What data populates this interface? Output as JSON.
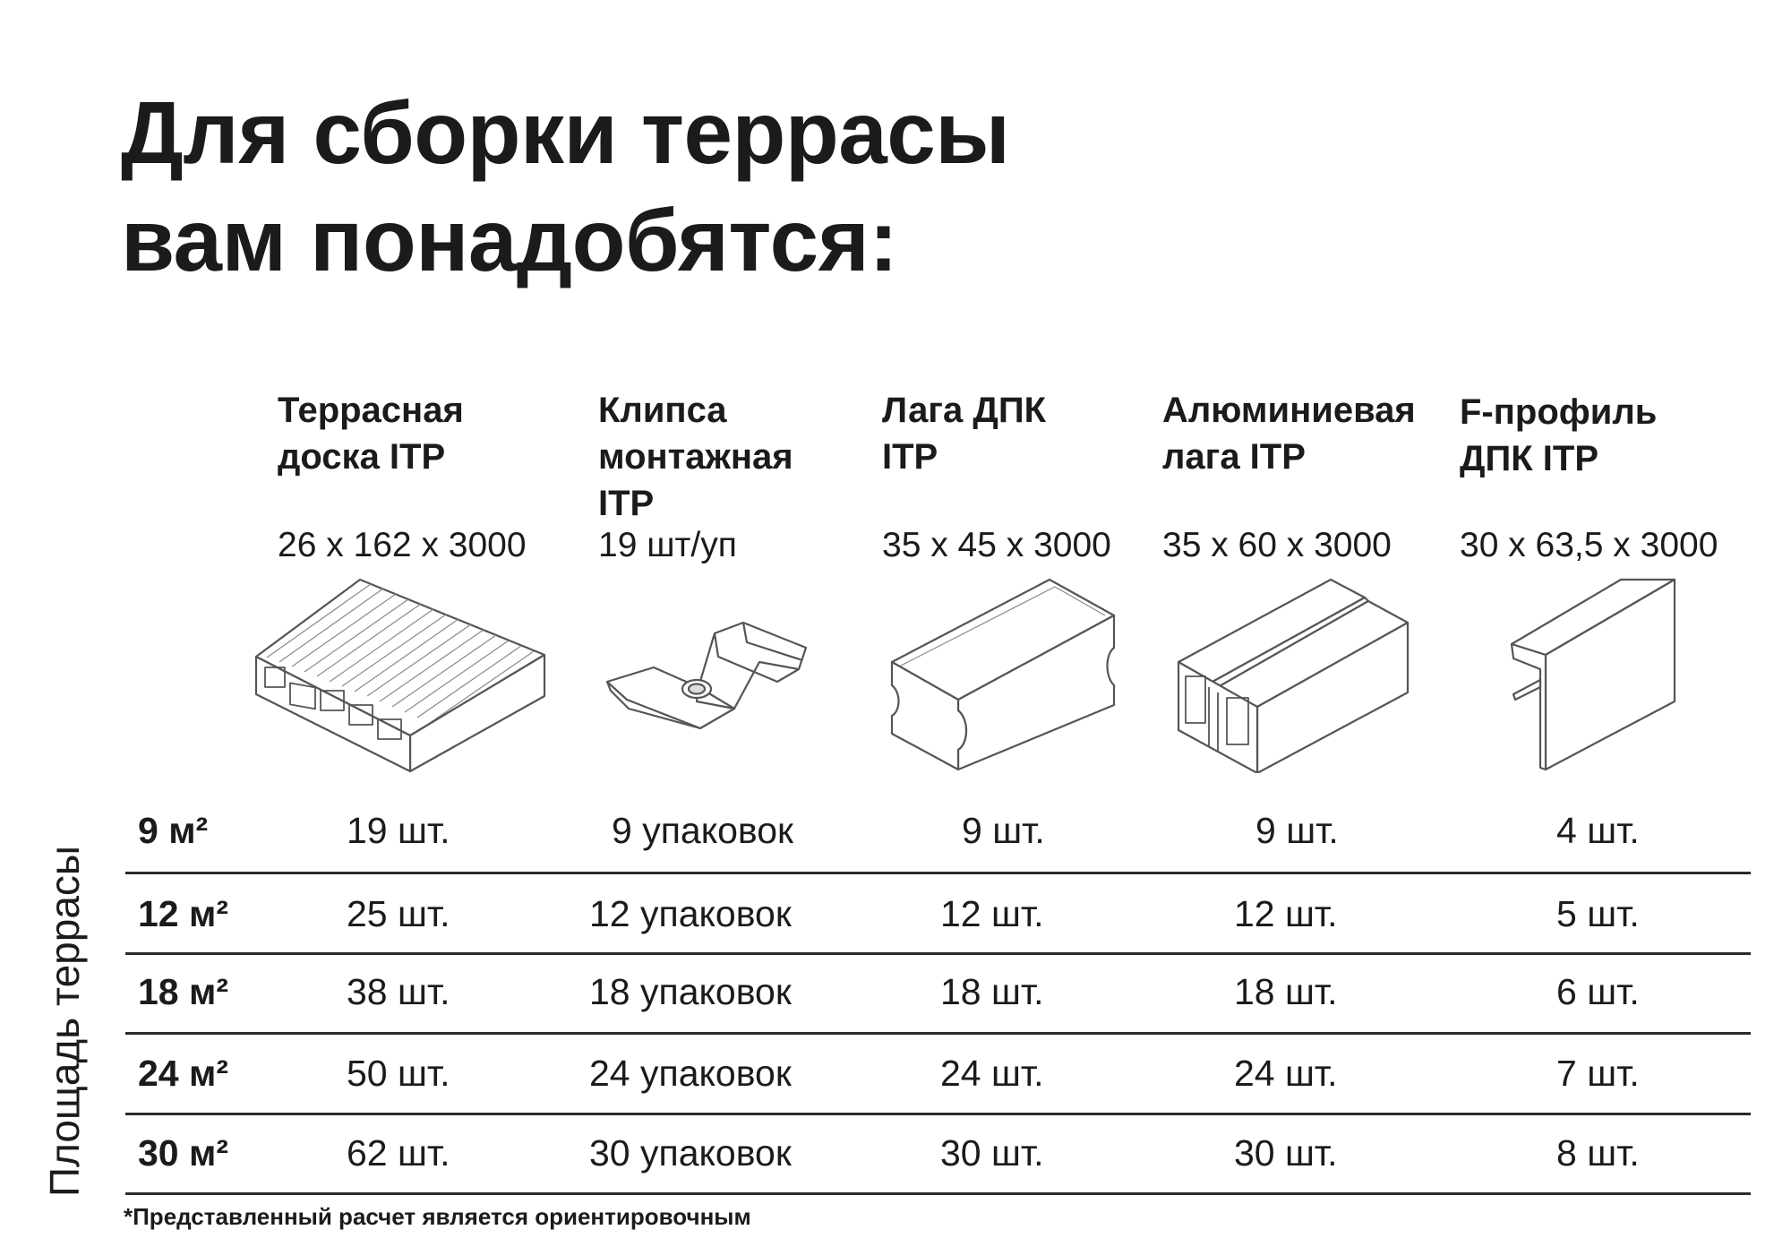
{
  "title": {
    "line1": "Для сборки террасы",
    "line2": "вам понадобятся:"
  },
  "products": [
    {
      "name_lines": [
        "Террасная",
        "доска ITP"
      ],
      "size": "26 x 162 x 3000",
      "icon": "decking-board-icon"
    },
    {
      "name_lines": [
        "Клипса",
        "монтажная",
        "ITP"
      ],
      "size": "19 шт/уп",
      "icon": "mounting-clip-icon"
    },
    {
      "name_lines": [
        "Лага ДПК",
        "ITP"
      ],
      "size": "35 x 45 x 3000",
      "icon": "wpc-joist-icon"
    },
    {
      "name_lines": [
        "Алюминиевая",
        "лага ITP"
      ],
      "size": "35 x 60 x 3000",
      "icon": "aluminium-joist-icon"
    },
    {
      "name_lines": [
        "F-профиль",
        "ДПК ITP"
      ],
      "size": "30 x 63,5 x 3000",
      "icon": "f-profile-icon"
    }
  ],
  "table": {
    "row_axis_label": "Площадь террасы",
    "rows": [
      {
        "area": "9 м²",
        "values": [
          "19 шт.",
          "9 упаковок",
          "9 шт.",
          "9 шт.",
          "4 шт."
        ]
      },
      {
        "area": "12 м²",
        "values": [
          "25 шт.",
          "12 упаковок",
          "12 шт.",
          "12 шт.",
          "5 шт."
        ]
      },
      {
        "area": "18 м²",
        "values": [
          "38 шт.",
          "18 упаковок",
          "18 шт.",
          "18 шт.",
          "6 шт."
        ]
      },
      {
        "area": "24 м²",
        "values": [
          "50 шт.",
          "24 упаковок",
          "24 шт.",
          "24 шт.",
          "7 шт."
        ]
      },
      {
        "area": "30 м²",
        "values": [
          "62 шт.",
          "30 упаковок",
          "30 шт.",
          "30 шт.",
          "8 шт."
        ]
      }
    ]
  },
  "footnote": "*Представленный расчет является ориентировочным",
  "colors": {
    "text": "#1b1b1b",
    "line": "#2b2b2b",
    "icon_stroke": "#555555",
    "background": "#ffffff"
  }
}
